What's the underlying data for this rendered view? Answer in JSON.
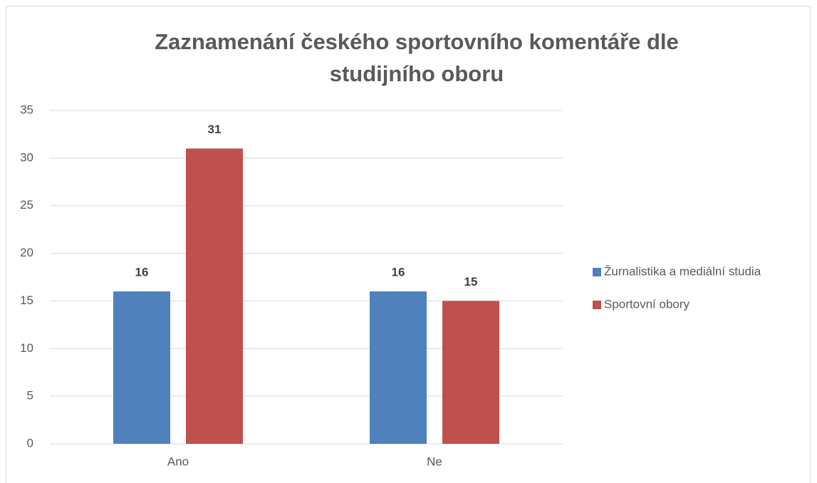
{
  "chart_data": {
    "type": "bar",
    "title": "Zaznamenání českého sportovního komentáře dle studijního oboru",
    "categories": [
      "Ano",
      "Ne"
    ],
    "series": [
      {
        "name": "Žurnalistika a mediální studia",
        "color": "#4f81bd",
        "values": [
          16,
          16
        ]
      },
      {
        "name": "Sportovní obory",
        "color": "#c0504d",
        "values": [
          31,
          15
        ]
      }
    ],
    "ylim": [
      0,
      35
    ],
    "yticks": [
      0,
      5,
      10,
      15,
      20,
      25,
      30,
      35
    ],
    "grid": true,
    "legend": "right"
  }
}
